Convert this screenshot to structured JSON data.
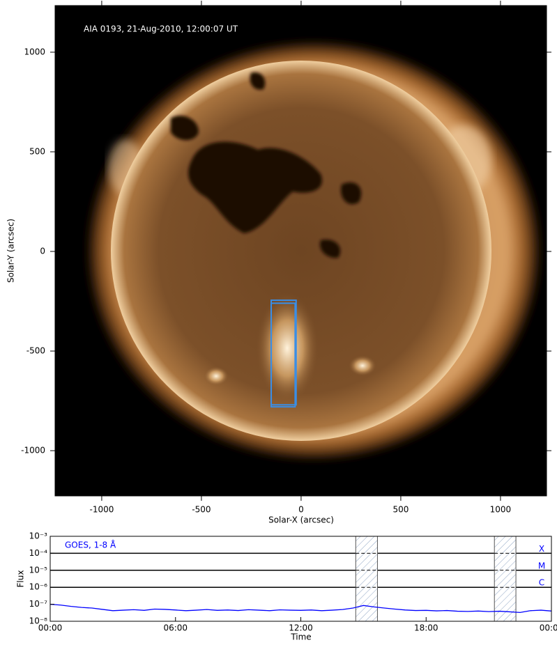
{
  "chart_data": [
    {
      "type": "image",
      "annotation": "AIA 0193, 21-Aug-2010, 12:00:07 UT",
      "xlabel": "Solar-X (arcsec)",
      "ylabel": "Solar-Y (arcsec)",
      "xlim": [
        -1234,
        1231
      ],
      "ylim": [
        -1227,
        1234
      ],
      "xticks": [
        -1000,
        -500,
        0,
        500,
        1000
      ],
      "yticks": [
        -1000,
        -500,
        0,
        500,
        1000
      ],
      "regions": [
        {
          "x": [
            -150,
            -25
          ],
          "y": [
            -770,
            -245
          ]
        },
        {
          "x": [
            -150,
            -30
          ],
          "y": [
            -780,
            -260
          ]
        }
      ],
      "region_color": "#3a8ee6"
    },
    {
      "type": "line",
      "xlabel": "Time",
      "ylabel": "Flux",
      "xlim": [
        0,
        24
      ],
      "ylim": [
        1e-08,
        0.001
      ],
      "log_y": true,
      "xticks": [
        {
          "value": 0,
          "label": "00:00"
        },
        {
          "value": 6,
          "label": "06:00"
        },
        {
          "value": 12,
          "label": "12:00"
        },
        {
          "value": 18,
          "label": "18:00"
        },
        {
          "value": 24,
          "label": "00:00"
        }
      ],
      "yticks": [
        {
          "value": 0.001,
          "label": "10⁻³"
        },
        {
          "value": 0.0001,
          "label": "10⁻⁴"
        },
        {
          "value": 1e-05,
          "label": "10⁻⁵"
        },
        {
          "value": 1e-06,
          "label": "10⁻⁶"
        },
        {
          "value": 1e-07,
          "label": "10⁻⁷"
        },
        {
          "value": 1e-08,
          "label": "10⁻⁸"
        }
      ],
      "flare_classes": [
        {
          "label": "X",
          "value": 0.0001
        },
        {
          "label": "M",
          "value": 1e-05
        },
        {
          "label": "C",
          "value": 1e-06
        }
      ],
      "highlight_ranges": [
        [
          14.63,
          15.67
        ],
        [
          21.27,
          22.3
        ]
      ],
      "x": [
        0,
        0.5,
        1,
        1.5,
        2,
        2.5,
        3,
        3.5,
        4,
        4.5,
        5,
        5.5,
        6,
        6.5,
        7,
        7.5,
        8,
        8.5,
        9,
        9.5,
        10,
        10.5,
        11,
        11.5,
        12,
        12.5,
        13,
        13.5,
        14,
        14.5,
        15,
        15.5,
        16,
        16.5,
        17,
        17.5,
        18,
        18.5,
        19,
        19.5,
        20,
        20.5,
        21,
        21.5,
        22,
        22.5,
        23,
        23.5,
        24
      ],
      "series": [
        {
          "name": "GOES, 1-8 Å",
          "color": "#0000ff",
          "values": [
            1e-07,
            9e-08,
            7.5e-08,
            6.5e-08,
            6e-08,
            5e-08,
            4.2e-08,
            4.5e-08,
            4.8e-08,
            4.4e-08,
            5.2e-08,
            5e-08,
            4.6e-08,
            4.2e-08,
            4.5e-08,
            4.9e-08,
            4.4e-08,
            4.6e-08,
            4.3e-08,
            4.8e-08,
            4.5e-08,
            4.2e-08,
            4.7e-08,
            4.5e-08,
            4.4e-08,
            4.6e-08,
            4.2e-08,
            4.5e-08,
            4.9e-08,
            6e-08,
            8.5e-08,
            7e-08,
            6e-08,
            5.2e-08,
            4.6e-08,
            4.3e-08,
            4.4e-08,
            4.1e-08,
            4.3e-08,
            3.9e-08,
            3.8e-08,
            4e-08,
            3.7e-08,
            3.9e-08,
            3.6e-08,
            3.3e-08,
            4.2e-08,
            4.5e-08,
            4e-08
          ]
        }
      ]
    }
  ]
}
